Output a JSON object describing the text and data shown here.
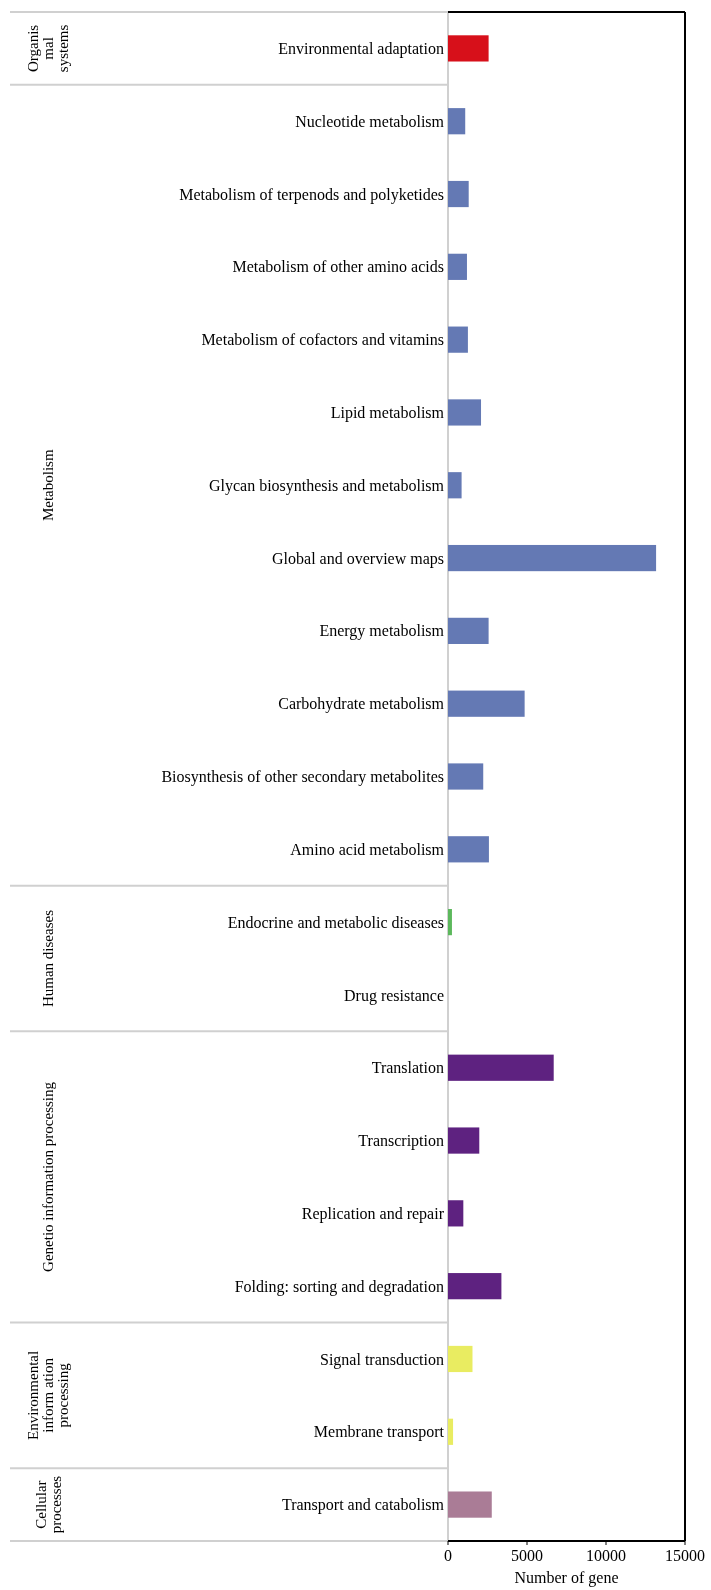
{
  "chart_data": {
    "type": "bar",
    "orientation": "horizontal",
    "xlabel": "Number of gene",
    "categories": [
      "Environmental adaptation",
      "Nucleotide metabolism",
      "Metabolism of terpenods and polyketides",
      "Metabolism of other amino acids",
      "Metabolism of cofactors and vitamins",
      "Lipid metabolism",
      "Glycan biosynthesis and metabolism",
      "Global and overview maps",
      "Energy metabolism",
      "Carbohydrate metabolism",
      "Biosynthesis of other secondary metabolites",
      "Amino acid metabolism",
      "Endocrine and metabolic diseases",
      "Drug resistance",
      "Translation",
      "Transcription",
      "Replication and repair",
      "Folding: sorting and degradation",
      "Signal transduction",
      "Membrane transport",
      "Transport and catabolism"
    ],
    "series": [
      {
        "color": "#d7101a",
        "values": [
          2570,
          null,
          null,
          null,
          null,
          null,
          null,
          null,
          null,
          null,
          null,
          null,
          null,
          null,
          null,
          null,
          null,
          null,
          null,
          null,
          null
        ]
      },
      {
        "color": "#6479b4",
        "values": [
          null,
          1090,
          1310,
          1200,
          1260,
          2090,
          860,
          13170,
          2570,
          4850,
          2230,
          2590,
          null,
          null,
          null,
          null,
          null,
          null,
          null,
          null,
          null
        ]
      },
      {
        "color": "#5cb85c",
        "values": [
          null,
          null,
          null,
          null,
          null,
          null,
          null,
          null,
          null,
          null,
          null,
          null,
          250,
          0,
          null,
          null,
          null,
          null,
          null,
          null,
          null
        ]
      },
      {
        "color": "#5e2280",
        "values": [
          null,
          null,
          null,
          null,
          null,
          null,
          null,
          null,
          null,
          null,
          null,
          null,
          null,
          null,
          6690,
          1980,
          970,
          3380,
          null,
          null,
          null
        ]
      },
      {
        "color": "#e9ec61",
        "values": [
          null,
          null,
          null,
          null,
          null,
          null,
          null,
          null,
          null,
          null,
          null,
          null,
          null,
          null,
          null,
          null,
          null,
          null,
          1550,
          320,
          null
        ]
      },
      {
        "color": "#aa7c96",
        "values": [
          null,
          null,
          null,
          null,
          null,
          null,
          null,
          null,
          null,
          null,
          null,
          null,
          null,
          null,
          null,
          null,
          null,
          null,
          null,
          null,
          2770
        ]
      }
    ],
    "annotations": [
      "Organis mal systems",
      "Metabolism",
      "Human diseases",
      "Genetio information processing",
      "Environmental inform ation processing",
      "Cellular processes"
    ],
    "xlim": [
      0,
      15000
    ],
    "xticks": [
      0,
      5000,
      10000,
      15000
    ],
    "grid": false
  }
}
